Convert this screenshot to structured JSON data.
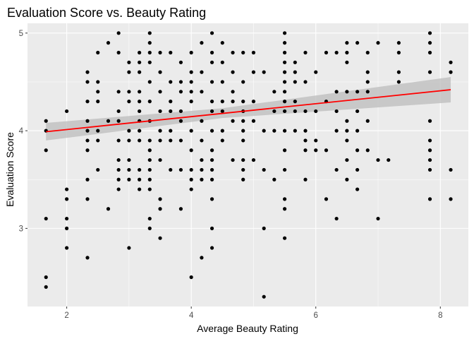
{
  "chart_data": {
    "type": "scatter",
    "title": "Evaluation Score vs. Beauty Rating",
    "xlabel": "Average Beauty Rating",
    "ylabel": "Evaluation Score",
    "xlim": [
      1.37,
      8.45
    ],
    "ylim": [
      2.2,
      5.1
    ],
    "xticks": [
      2,
      4,
      6,
      8
    ],
    "yticks": [
      3,
      4,
      5
    ],
    "xtick_labels": [
      "2",
      "4",
      "6",
      "8"
    ],
    "ytick_labels": [
      "3",
      "4",
      "5"
    ],
    "grid": true,
    "legend": "none",
    "colors": {
      "panel": "#ebebeb",
      "grid": "#ffffff",
      "points": "#000000",
      "fit_line": "#ff0000",
      "confidence_band": "#bfbfbf"
    },
    "fit_line": {
      "x": [
        1.667,
        8.167
      ],
      "y": [
        3.99,
        4.42
      ]
    },
    "confidence_band": {
      "x": [
        1.667,
        4.5,
        8.167
      ],
      "lower": [
        3.9,
        4.13,
        4.29
      ],
      "upper": [
        4.08,
        4.23,
        4.55
      ]
    },
    "points": [
      {
        "x": 1.667,
        "y": 4.1
      },
      {
        "x": 1.667,
        "y": 4.0
      },
      {
        "x": 1.667,
        "y": 3.8
      },
      {
        "x": 1.667,
        "y": 3.1
      },
      {
        "x": 1.667,
        "y": 2.5
      },
      {
        "x": 1.667,
        "y": 2.4
      },
      {
        "x": 2.0,
        "y": 4.2
      },
      {
        "x": 2.0,
        "y": 3.4
      },
      {
        "x": 2.0,
        "y": 3.3
      },
      {
        "x": 2.0,
        "y": 3.1
      },
      {
        "x": 2.0,
        "y": 3.0
      },
      {
        "x": 2.0,
        "y": 2.8
      },
      {
        "x": 2.333,
        "y": 4.6
      },
      {
        "x": 2.333,
        "y": 4.5
      },
      {
        "x": 2.333,
        "y": 4.3
      },
      {
        "x": 2.333,
        "y": 4.1
      },
      {
        "x": 2.333,
        "y": 4.0
      },
      {
        "x": 2.333,
        "y": 3.9
      },
      {
        "x": 2.333,
        "y": 3.8
      },
      {
        "x": 2.333,
        "y": 3.5
      },
      {
        "x": 2.333,
        "y": 3.3
      },
      {
        "x": 2.333,
        "y": 2.7
      },
      {
        "x": 2.5,
        "y": 4.8
      },
      {
        "x": 2.5,
        "y": 4.5
      },
      {
        "x": 2.5,
        "y": 4.4
      },
      {
        "x": 2.5,
        "y": 4.3
      },
      {
        "x": 2.5,
        "y": 4.0
      },
      {
        "x": 2.5,
        "y": 3.9
      },
      {
        "x": 2.5,
        "y": 3.6
      },
      {
        "x": 2.667,
        "y": 4.9
      },
      {
        "x": 2.667,
        "y": 4.1
      },
      {
        "x": 2.667,
        "y": 3.2
      },
      {
        "x": 2.833,
        "y": 5.0
      },
      {
        "x": 2.833,
        "y": 4.8
      },
      {
        "x": 2.833,
        "y": 4.4
      },
      {
        "x": 2.833,
        "y": 4.2
      },
      {
        "x": 2.833,
        "y": 4.1
      },
      {
        "x": 2.833,
        "y": 3.9
      },
      {
        "x": 2.833,
        "y": 3.7
      },
      {
        "x": 2.833,
        "y": 3.6
      },
      {
        "x": 2.833,
        "y": 3.5
      },
      {
        "x": 2.833,
        "y": 3.4
      },
      {
        "x": 3.0,
        "y": 4.7
      },
      {
        "x": 3.0,
        "y": 4.6
      },
      {
        "x": 3.0,
        "y": 4.4
      },
      {
        "x": 3.0,
        "y": 4.3
      },
      {
        "x": 3.0,
        "y": 4.0
      },
      {
        "x": 3.0,
        "y": 3.9
      },
      {
        "x": 3.0,
        "y": 3.7
      },
      {
        "x": 3.0,
        "y": 3.6
      },
      {
        "x": 3.0,
        "y": 3.5
      },
      {
        "x": 3.0,
        "y": 2.8
      },
      {
        "x": 3.167,
        "y": 4.8
      },
      {
        "x": 3.167,
        "y": 4.7
      },
      {
        "x": 3.167,
        "y": 4.6
      },
      {
        "x": 3.167,
        "y": 4.4
      },
      {
        "x": 3.167,
        "y": 4.3
      },
      {
        "x": 3.167,
        "y": 4.2
      },
      {
        "x": 3.167,
        "y": 4.1
      },
      {
        "x": 3.167,
        "y": 4.0
      },
      {
        "x": 3.167,
        "y": 3.9
      },
      {
        "x": 3.167,
        "y": 3.6
      },
      {
        "x": 3.167,
        "y": 3.5
      },
      {
        "x": 3.167,
        "y": 3.4
      },
      {
        "x": 3.333,
        "y": 5.0
      },
      {
        "x": 3.333,
        "y": 4.9
      },
      {
        "x": 3.333,
        "y": 4.8
      },
      {
        "x": 3.333,
        "y": 4.7
      },
      {
        "x": 3.333,
        "y": 4.5
      },
      {
        "x": 3.333,
        "y": 4.3
      },
      {
        "x": 3.333,
        "y": 4.1
      },
      {
        "x": 3.333,
        "y": 3.9
      },
      {
        "x": 3.333,
        "y": 3.8
      },
      {
        "x": 3.333,
        "y": 3.7
      },
      {
        "x": 3.333,
        "y": 3.6
      },
      {
        "x": 3.333,
        "y": 3.5
      },
      {
        "x": 3.333,
        "y": 3.4
      },
      {
        "x": 3.333,
        "y": 3.1
      },
      {
        "x": 3.333,
        "y": 3.0
      },
      {
        "x": 3.5,
        "y": 4.8
      },
      {
        "x": 3.5,
        "y": 4.6
      },
      {
        "x": 3.5,
        "y": 4.4
      },
      {
        "x": 3.5,
        "y": 4.2
      },
      {
        "x": 3.5,
        "y": 4.0
      },
      {
        "x": 3.5,
        "y": 3.9
      },
      {
        "x": 3.5,
        "y": 3.7
      },
      {
        "x": 3.5,
        "y": 3.3
      },
      {
        "x": 3.5,
        "y": 3.2
      },
      {
        "x": 3.5,
        "y": 2.9
      },
      {
        "x": 3.667,
        "y": 4.8
      },
      {
        "x": 3.667,
        "y": 4.5
      },
      {
        "x": 3.667,
        "y": 4.3
      },
      {
        "x": 3.667,
        "y": 4.2
      },
      {
        "x": 3.667,
        "y": 4.0
      },
      {
        "x": 3.667,
        "y": 3.9
      },
      {
        "x": 3.667,
        "y": 3.6
      },
      {
        "x": 3.833,
        "y": 4.7
      },
      {
        "x": 3.833,
        "y": 4.5
      },
      {
        "x": 3.833,
        "y": 4.4
      },
      {
        "x": 3.833,
        "y": 4.2
      },
      {
        "x": 3.833,
        "y": 4.1
      },
      {
        "x": 3.833,
        "y": 3.9
      },
      {
        "x": 3.833,
        "y": 3.6
      },
      {
        "x": 3.833,
        "y": 3.2
      },
      {
        "x": 4.0,
        "y": 4.8
      },
      {
        "x": 4.0,
        "y": 4.6
      },
      {
        "x": 4.0,
        "y": 4.5
      },
      {
        "x": 4.0,
        "y": 4.4
      },
      {
        "x": 4.0,
        "y": 4.3
      },
      {
        "x": 4.0,
        "y": 4.0
      },
      {
        "x": 4.0,
        "y": 3.8
      },
      {
        "x": 4.0,
        "y": 3.6
      },
      {
        "x": 4.0,
        "y": 3.5
      },
      {
        "x": 4.0,
        "y": 3.4
      },
      {
        "x": 4.0,
        "y": 2.5
      },
      {
        "x": 4.167,
        "y": 4.9
      },
      {
        "x": 4.167,
        "y": 4.6
      },
      {
        "x": 4.167,
        "y": 4.4
      },
      {
        "x": 4.167,
        "y": 4.1
      },
      {
        "x": 4.167,
        "y": 3.9
      },
      {
        "x": 4.167,
        "y": 3.7
      },
      {
        "x": 4.167,
        "y": 3.6
      },
      {
        "x": 4.167,
        "y": 3.5
      },
      {
        "x": 4.167,
        "y": 2.7
      },
      {
        "x": 4.333,
        "y": 5.0
      },
      {
        "x": 4.333,
        "y": 4.8
      },
      {
        "x": 4.333,
        "y": 4.7
      },
      {
        "x": 4.333,
        "y": 4.5
      },
      {
        "x": 4.333,
        "y": 4.3
      },
      {
        "x": 4.333,
        "y": 4.2
      },
      {
        "x": 4.333,
        "y": 4.0
      },
      {
        "x": 4.333,
        "y": 3.8
      },
      {
        "x": 4.333,
        "y": 3.7
      },
      {
        "x": 4.333,
        "y": 3.6
      },
      {
        "x": 4.333,
        "y": 3.5
      },
      {
        "x": 4.333,
        "y": 3.3
      },
      {
        "x": 4.333,
        "y": 3.0
      },
      {
        "x": 4.333,
        "y": 2.8
      },
      {
        "x": 4.5,
        "y": 4.9
      },
      {
        "x": 4.5,
        "y": 4.7
      },
      {
        "x": 4.5,
        "y": 4.5
      },
      {
        "x": 4.5,
        "y": 4.3
      },
      {
        "x": 4.5,
        "y": 4.2
      },
      {
        "x": 4.5,
        "y": 4.0
      },
      {
        "x": 4.5,
        "y": 3.9
      },
      {
        "x": 4.667,
        "y": 4.8
      },
      {
        "x": 4.667,
        "y": 4.6
      },
      {
        "x": 4.667,
        "y": 4.4
      },
      {
        "x": 4.667,
        "y": 4.3
      },
      {
        "x": 4.667,
        "y": 4.1
      },
      {
        "x": 4.667,
        "y": 3.7
      },
      {
        "x": 4.833,
        "y": 4.8
      },
      {
        "x": 4.833,
        "y": 4.5
      },
      {
        "x": 4.833,
        "y": 4.3
      },
      {
        "x": 4.833,
        "y": 4.2
      },
      {
        "x": 4.833,
        "y": 4.1
      },
      {
        "x": 4.833,
        "y": 4.0
      },
      {
        "x": 4.833,
        "y": 3.9
      },
      {
        "x": 4.833,
        "y": 3.7
      },
      {
        "x": 4.833,
        "y": 3.6
      },
      {
        "x": 4.833,
        "y": 3.5
      },
      {
        "x": 5.0,
        "y": 4.8
      },
      {
        "x": 5.0,
        "y": 4.6
      },
      {
        "x": 5.0,
        "y": 4.3
      },
      {
        "x": 5.0,
        "y": 4.1
      },
      {
        "x": 5.0,
        "y": 3.7
      },
      {
        "x": 5.167,
        "y": 4.6
      },
      {
        "x": 5.167,
        "y": 4.0
      },
      {
        "x": 5.167,
        "y": 3.6
      },
      {
        "x": 5.167,
        "y": 3.0
      },
      {
        "x": 5.167,
        "y": 2.3
      },
      {
        "x": 5.333,
        "y": 4.4
      },
      {
        "x": 5.333,
        "y": 4.2
      },
      {
        "x": 5.333,
        "y": 4.0
      },
      {
        "x": 5.333,
        "y": 3.5
      },
      {
        "x": 5.5,
        "y": 5.0
      },
      {
        "x": 5.5,
        "y": 4.9
      },
      {
        "x": 5.5,
        "y": 4.8
      },
      {
        "x": 5.5,
        "y": 4.7
      },
      {
        "x": 5.5,
        "y": 4.6
      },
      {
        "x": 5.5,
        "y": 4.5
      },
      {
        "x": 5.5,
        "y": 4.4
      },
      {
        "x": 5.5,
        "y": 4.3
      },
      {
        "x": 5.5,
        "y": 4.2
      },
      {
        "x": 5.5,
        "y": 4.0
      },
      {
        "x": 5.5,
        "y": 3.8
      },
      {
        "x": 5.5,
        "y": 3.6
      },
      {
        "x": 5.5,
        "y": 3.3
      },
      {
        "x": 5.5,
        "y": 3.2
      },
      {
        "x": 5.5,
        "y": 2.9
      },
      {
        "x": 5.667,
        "y": 4.7
      },
      {
        "x": 5.667,
        "y": 4.6
      },
      {
        "x": 5.667,
        "y": 4.5
      },
      {
        "x": 5.667,
        "y": 4.3
      },
      {
        "x": 5.667,
        "y": 4.2
      },
      {
        "x": 5.667,
        "y": 4.0
      },
      {
        "x": 5.833,
        "y": 4.8
      },
      {
        "x": 5.833,
        "y": 4.5
      },
      {
        "x": 5.833,
        "y": 4.2
      },
      {
        "x": 5.833,
        "y": 4.0
      },
      {
        "x": 5.833,
        "y": 3.9
      },
      {
        "x": 5.833,
        "y": 3.8
      },
      {
        "x": 5.833,
        "y": 3.5
      },
      {
        "x": 6.0,
        "y": 4.6
      },
      {
        "x": 6.0,
        "y": 4.2
      },
      {
        "x": 6.0,
        "y": 3.9
      },
      {
        "x": 6.0,
        "y": 3.8
      },
      {
        "x": 6.167,
        "y": 4.8
      },
      {
        "x": 6.167,
        "y": 4.3
      },
      {
        "x": 6.167,
        "y": 3.8
      },
      {
        "x": 6.167,
        "y": 3.3
      },
      {
        "x": 6.333,
        "y": 4.8
      },
      {
        "x": 6.333,
        "y": 4.4
      },
      {
        "x": 6.333,
        "y": 4.2
      },
      {
        "x": 6.333,
        "y": 4.0
      },
      {
        "x": 6.333,
        "y": 3.6
      },
      {
        "x": 6.333,
        "y": 3.1
      },
      {
        "x": 6.5,
        "y": 4.9
      },
      {
        "x": 6.5,
        "y": 4.8
      },
      {
        "x": 6.5,
        "y": 4.7
      },
      {
        "x": 6.5,
        "y": 4.4
      },
      {
        "x": 6.5,
        "y": 4.1
      },
      {
        "x": 6.5,
        "y": 4.0
      },
      {
        "x": 6.5,
        "y": 3.9
      },
      {
        "x": 6.5,
        "y": 3.7
      },
      {
        "x": 6.5,
        "y": 3.5
      },
      {
        "x": 6.667,
        "y": 4.9
      },
      {
        "x": 6.667,
        "y": 4.4
      },
      {
        "x": 6.667,
        "y": 4.2
      },
      {
        "x": 6.667,
        "y": 4.0
      },
      {
        "x": 6.667,
        "y": 3.8
      },
      {
        "x": 6.667,
        "y": 3.6
      },
      {
        "x": 6.667,
        "y": 3.4
      },
      {
        "x": 6.833,
        "y": 4.8
      },
      {
        "x": 6.833,
        "y": 4.6
      },
      {
        "x": 6.833,
        "y": 4.5
      },
      {
        "x": 6.833,
        "y": 4.4
      },
      {
        "x": 6.833,
        "y": 4.1
      },
      {
        "x": 6.833,
        "y": 3.8
      },
      {
        "x": 7.0,
        "y": 4.9
      },
      {
        "x": 7.0,
        "y": 3.7
      },
      {
        "x": 7.0,
        "y": 3.1
      },
      {
        "x": 7.167,
        "y": 3.7
      },
      {
        "x": 7.333,
        "y": 4.9
      },
      {
        "x": 7.333,
        "y": 4.8
      },
      {
        "x": 7.333,
        "y": 4.6
      },
      {
        "x": 7.333,
        "y": 4.5
      },
      {
        "x": 7.833,
        "y": 5.0
      },
      {
        "x": 7.833,
        "y": 4.9
      },
      {
        "x": 7.833,
        "y": 4.8
      },
      {
        "x": 7.833,
        "y": 4.6
      },
      {
        "x": 7.833,
        "y": 4.1
      },
      {
        "x": 7.833,
        "y": 3.9
      },
      {
        "x": 7.833,
        "y": 3.8
      },
      {
        "x": 7.833,
        "y": 3.7
      },
      {
        "x": 7.833,
        "y": 3.6
      },
      {
        "x": 7.833,
        "y": 3.3
      },
      {
        "x": 8.167,
        "y": 4.7
      },
      {
        "x": 8.167,
        "y": 4.6
      },
      {
        "x": 8.167,
        "y": 3.6
      },
      {
        "x": 8.167,
        "y": 3.3
      }
    ]
  }
}
